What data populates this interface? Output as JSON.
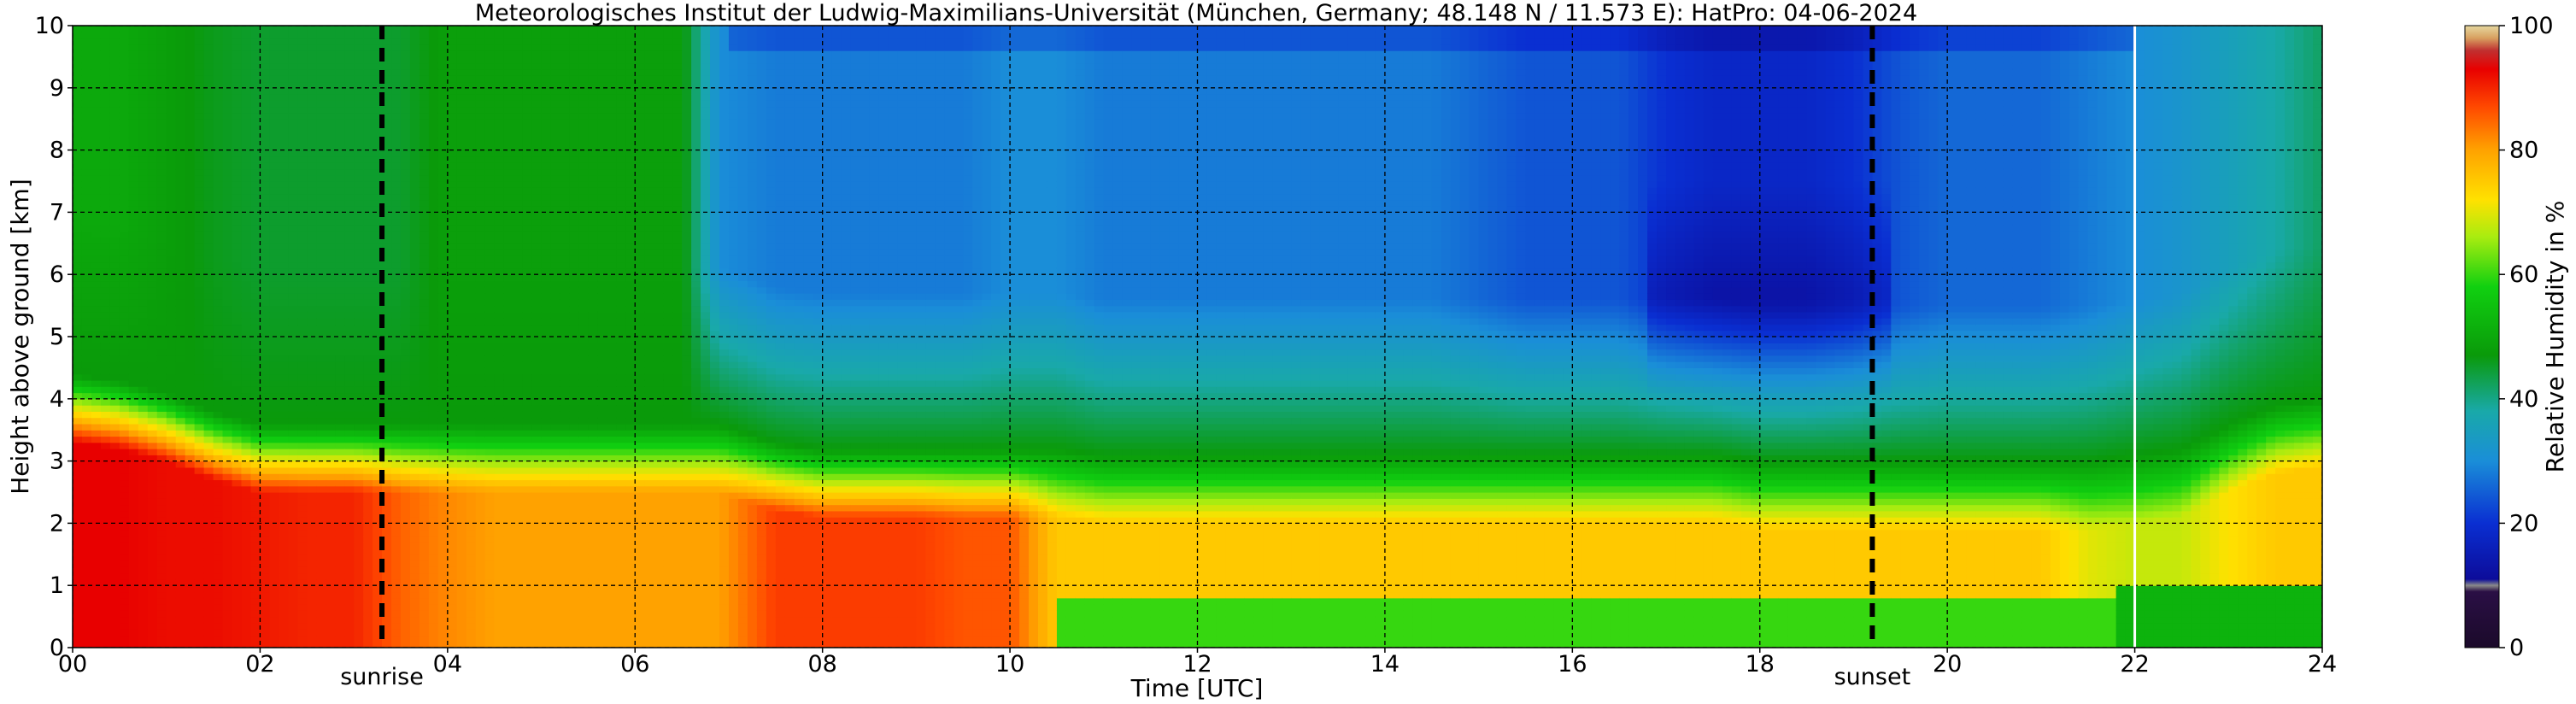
{
  "chart_data": {
    "type": "heatmap",
    "title": "Meteorologisches Institut der Ludwig-Maximilians-Universität (München, Germany; 48.148 N / 11.573 E):    HatPro: 04-06-2024",
    "xlabel": "Time [UTC]",
    "ylabel": "Height above ground [km]",
    "xlim": [
      0,
      24
    ],
    "ylim": [
      0,
      10
    ],
    "x_ticks": [
      "00",
      "02",
      "04",
      "06",
      "08",
      "10",
      "12",
      "14",
      "16",
      "18",
      "20",
      "22",
      "24"
    ],
    "y_ticks": [
      "0",
      "1",
      "2",
      "3",
      "4",
      "5",
      "6",
      "7",
      "8",
      "9",
      "10"
    ],
    "grid": true,
    "colorbar": {
      "label": "Relative Humidity in %",
      "range": [
        0,
        100
      ],
      "ticks": [
        "0",
        "20",
        "40",
        "60",
        "80",
        "100"
      ]
    },
    "annotations": [
      {
        "x": 3.3,
        "label": "sunrise",
        "style": "dashed-black"
      },
      {
        "x": 19.2,
        "label": "sunset",
        "style": "dashed-black"
      },
      {
        "x": 22.0,
        "label": "",
        "style": "solid-white"
      }
    ],
    "time_columns": [
      0,
      0.5,
      1,
      1.5,
      2,
      2.5,
      3,
      3.5,
      4,
      4.5,
      5,
      5.5,
      6,
      6.5,
      6.9,
      7.5,
      8,
      8.5,
      9,
      9.5,
      10,
      10.5,
      11,
      11.5,
      12,
      12.5,
      13,
      13.5,
      14,
      14.5,
      15,
      15.5,
      16,
      16.5,
      17,
      17.5,
      18,
      18.5,
      19,
      19.5,
      20,
      20.5,
      21,
      21.5,
      22,
      22.5,
      23,
      23.5,
      24
    ],
    "layers": [
      {
        "name": "low_humid_layer_top_km",
        "values": [
          3.8,
          3.7,
          3.5,
          3.2,
          3.0,
          3.0,
          3.0,
          3.0,
          3.0,
          3.0,
          3.0,
          3.0,
          3.0,
          3.0,
          3.0,
          2.7,
          2.6,
          2.6,
          2.6,
          2.6,
          2.6,
          2.6,
          2.5,
          2.5,
          2.5,
          2.5,
          2.5,
          2.5,
          2.5,
          2.5,
          2.5,
          2.5,
          2.5,
          2.5,
          2.5,
          2.5,
          2.4,
          2.4,
          2.4,
          2.4,
          2.4,
          2.4,
          2.4,
          2.4,
          2.5,
          2.6,
          3.0,
          3.3,
          3.4
        ]
      },
      {
        "name": "rh_surface_to_2km_pct",
        "values": [
          93,
          93,
          92,
          92,
          91,
          90,
          90,
          85,
          82,
          80,
          80,
          80,
          80,
          80,
          80,
          88,
          88,
          88,
          88,
          86,
          86,
          75,
          75,
          75,
          75,
          75,
          75,
          75,
          75,
          75,
          75,
          75,
          75,
          75,
          75,
          75,
          75,
          75,
          75,
          75,
          75,
          75,
          75,
          70,
          68,
          68,
          72,
          75,
          75
        ]
      },
      {
        "name": "rh_upper_levels_pct",
        "values": [
          50,
          50,
          48,
          46,
          45,
          45,
          45,
          45,
          48,
          48,
          48,
          48,
          48,
          48,
          30,
          28,
          28,
          28,
          28,
          28,
          30,
          30,
          28,
          28,
          28,
          28,
          28,
          28,
          28,
          28,
          26,
          24,
          24,
          24,
          20,
          18,
          18,
          18,
          20,
          24,
          26,
          26,
          26,
          28,
          30,
          32,
          35,
          38,
          42
        ]
      }
    ]
  }
}
